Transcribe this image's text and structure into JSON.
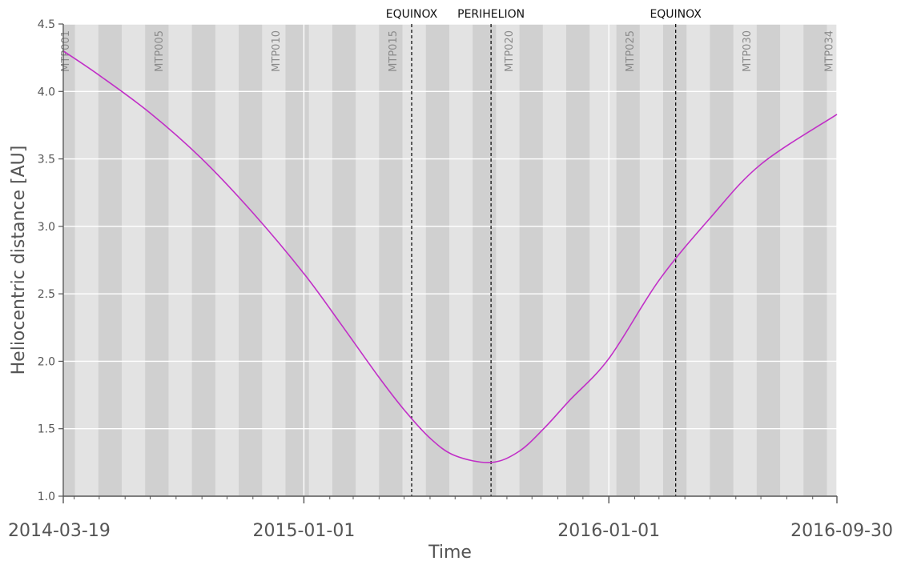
{
  "chart_data": {
    "type": "line",
    "title": "",
    "xlabel": "Time",
    "ylabel": "Heliocentric distance [AU]",
    "xlim": [
      "2014-03-19",
      "2016-09-30"
    ],
    "ylim": [
      1.0,
      4.5
    ],
    "x_tick_labels": [
      "2014-03-19",
      "2015-01-01",
      "2016-01-01",
      "2016-09-30"
    ],
    "y_ticks": [
      1.0,
      1.5,
      2.0,
      2.5,
      3.0,
      3.5,
      4.0,
      4.5
    ],
    "y_tick_labels": [
      "1.0",
      "1.5",
      "2.0",
      "2.5",
      "3.0",
      "3.5",
      "4.0",
      "4.5"
    ],
    "grid": true,
    "legend": "none",
    "colors": {
      "background": "#e3e3e3",
      "band_dark": "#d0d0d0",
      "grid": "#ffffff",
      "line": "#c12fc7",
      "event_line": "#111111"
    },
    "series": [
      {
        "x": [
          "2014-03-19",
          "2014-05-01",
          "2014-07-01",
          "2014-09-01",
          "2014-11-01",
          "2015-01-01",
          "2015-02-15",
          "2015-04-01",
          "2015-05-01",
          "2015-06-01",
          "2015-07-01",
          "2015-08-13",
          "2015-09-15",
          "2015-10-15",
          "2015-11-15",
          "2016-01-01",
          "2016-03-01",
          "2016-05-01",
          "2016-07-01",
          "2016-09-30"
        ],
        "y": [
          4.3,
          4.12,
          3.84,
          3.5,
          3.1,
          2.65,
          2.27,
          1.88,
          1.64,
          1.43,
          1.3,
          1.25,
          1.33,
          1.5,
          1.71,
          2.02,
          2.6,
          3.06,
          3.46,
          3.83
        ]
      }
    ],
    "event_lines": [
      {
        "label": "EQUINOX",
        "x": "2015-05-10"
      },
      {
        "label": "PERIHELION",
        "x": "2015-08-13"
      },
      {
        "label": "EQUINOX",
        "x": "2016-03-21"
      }
    ],
    "mtp_bands": [
      {
        "start": "2014-03-19",
        "end": "2014-04-02"
      },
      {
        "start": "2014-04-30",
        "end": "2014-05-28"
      },
      {
        "start": "2014-06-25",
        "end": "2014-07-23"
      },
      {
        "start": "2014-08-20",
        "end": "2014-09-17"
      },
      {
        "start": "2014-10-15",
        "end": "2014-11-12"
      },
      {
        "start": "2014-12-10",
        "end": "2015-01-07"
      },
      {
        "start": "2015-02-04",
        "end": "2015-03-04"
      },
      {
        "start": "2015-04-01",
        "end": "2015-04-29"
      },
      {
        "start": "2015-05-27",
        "end": "2015-06-24"
      },
      {
        "start": "2015-07-22",
        "end": "2015-08-19"
      },
      {
        "start": "2015-09-16",
        "end": "2015-10-14"
      },
      {
        "start": "2015-11-11",
        "end": "2015-12-09"
      },
      {
        "start": "2016-01-10",
        "end": "2016-02-07"
      },
      {
        "start": "2016-03-06",
        "end": "2016-04-03"
      },
      {
        "start": "2016-05-01",
        "end": "2016-05-29"
      },
      {
        "start": "2016-06-26",
        "end": "2016-07-24"
      },
      {
        "start": "2016-08-21",
        "end": "2016-09-18"
      }
    ],
    "mtp_labels": [
      {
        "label": "MTP001",
        "x": "2014-03-19"
      },
      {
        "label": "MTP005",
        "x": "2014-07-09"
      },
      {
        "label": "MTP010",
        "x": "2014-11-26"
      },
      {
        "label": "MTP015",
        "x": "2015-04-15"
      },
      {
        "label": "MTP020",
        "x": "2015-09-01"
      },
      {
        "label": "MTP025",
        "x": "2016-01-24"
      },
      {
        "label": "MTP030",
        "x": "2016-06-12"
      },
      {
        "label": "MTP034",
        "x": "2016-09-18"
      }
    ]
  }
}
